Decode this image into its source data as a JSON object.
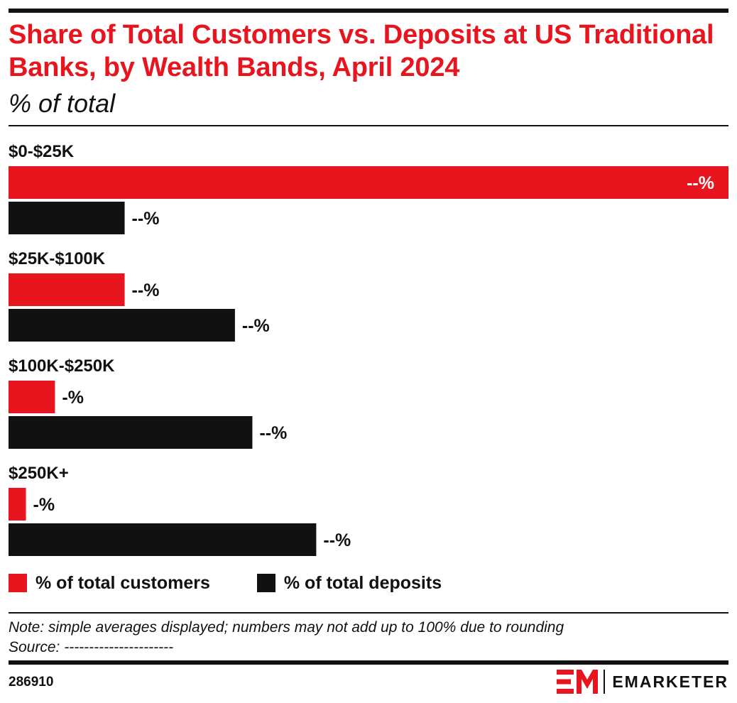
{
  "header": {
    "title": "Share of Total Customers vs. Deposits at US Traditional Banks, by Wealth Bands, April 2024",
    "subtitle": "% of total"
  },
  "chart_data": {
    "type": "bar",
    "orientation": "horizontal",
    "categories": [
      "$0-$25K",
      "$25K-$100K",
      "$100K-$250K",
      "$250K+"
    ],
    "series": [
      {
        "name": "% of total customers",
        "color": "#e8151f",
        "values": [
          62,
          10,
          4,
          1.5
        ],
        "value_labels": [
          "--%",
          "--%",
          "-%",
          "-%"
        ]
      },
      {
        "name": "% of total deposits",
        "color": "#111111",
        "values": [
          10,
          19.5,
          21,
          26.5
        ],
        "value_labels": [
          "--%",
          "--%",
          "--%",
          "--%"
        ]
      }
    ],
    "xlim": [
      0,
      62
    ],
    "grid": false,
    "legend": "bottom-left"
  },
  "footer": {
    "note": "Note: simple averages displayed; numbers may not add up to 100% due to rounding",
    "source": "Source: ----------------------",
    "chart_id": "286910",
    "brand": "EMARKETER",
    "brand_mark_text": "EM"
  },
  "colors": {
    "accent": "#e8151f",
    "ink": "#111111"
  }
}
